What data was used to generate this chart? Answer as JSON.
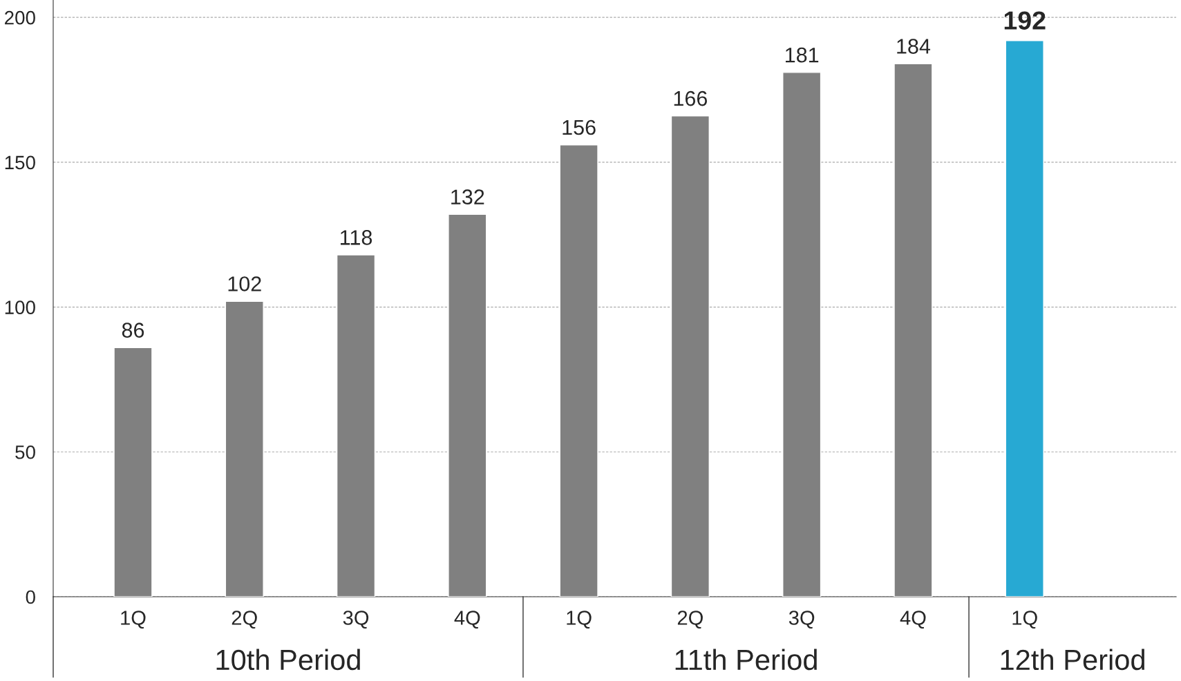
{
  "chart_data": {
    "type": "bar",
    "categories": [
      "1Q",
      "2Q",
      "3Q",
      "4Q",
      "1Q",
      "2Q",
      "3Q",
      "4Q",
      "1Q"
    ],
    "values": [
      86,
      102,
      118,
      132,
      156,
      166,
      181,
      184,
      192
    ],
    "colors": [
      "#808080",
      "#808080",
      "#808080",
      "#808080",
      "#808080",
      "#808080",
      "#808080",
      "#808080",
      "#27a9d3"
    ],
    "ylim": [
      0,
      206
    ],
    "yticks": [
      0,
      50,
      100,
      150,
      200
    ],
    "grid": "y",
    "data_labels": true,
    "legend": false,
    "annotations": [
      "10th Period",
      "11th Period",
      "12th Period"
    ]
  }
}
